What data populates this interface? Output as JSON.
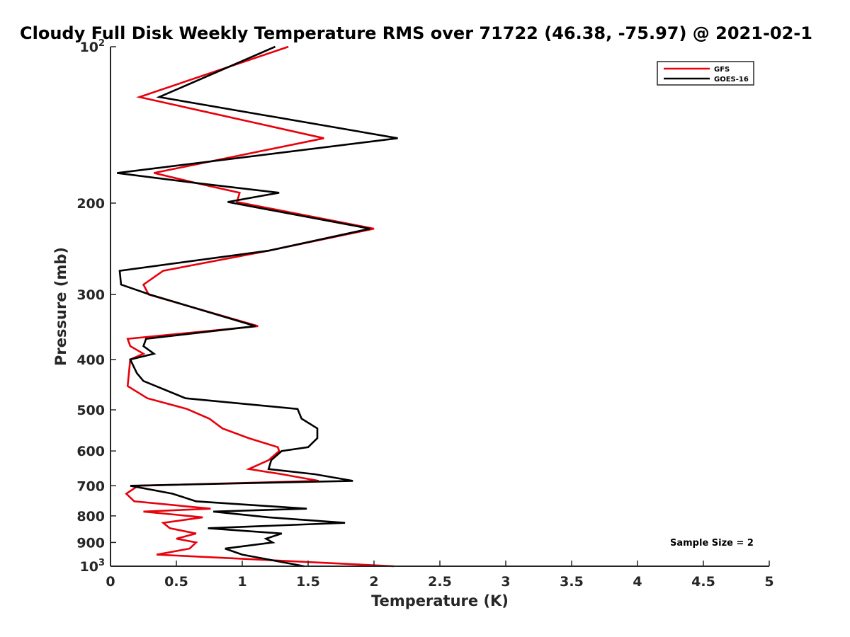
{
  "chart_data": {
    "type": "line",
    "title": "Cloudy Full Disk Weekly Temperature RMS over 71722 (46.38, -75.97) @ 2021-02-1",
    "xlabel": "Temperature (K)",
    "ylabel": "Pressure (mb)",
    "xlim": [
      0,
      5
    ],
    "ylim": [
      100,
      1000
    ],
    "yscale": "log",
    "y_reversed": true,
    "grid": false,
    "legend_position": "top-right",
    "x_ticks": [
      "0",
      "0.5",
      "1",
      "1.5",
      "2",
      "2.5",
      "3",
      "3.5",
      "4",
      "4.5",
      "5"
    ],
    "y_ticks": [
      {
        "value": 100,
        "base": "10",
        "exp": "2"
      },
      {
        "value": 200,
        "label": "200"
      },
      {
        "value": 300,
        "label": "300"
      },
      {
        "value": 400,
        "label": "400"
      },
      {
        "value": 500,
        "label": "500"
      },
      {
        "value": 600,
        "label": "600"
      },
      {
        "value": 700,
        "label": "700"
      },
      {
        "value": 800,
        "label": "800"
      },
      {
        "value": 900,
        "label": "900"
      },
      {
        "value": 1000,
        "base": "10",
        "exp": "3"
      }
    ],
    "series": [
      {
        "name": "GFS",
        "color": "#e8000b",
        "points": [
          [
            1.35,
            100
          ],
          [
            0.22,
            125
          ],
          [
            1.62,
            150
          ],
          [
            0.33,
            175
          ],
          [
            0.65,
            183
          ],
          [
            0.98,
            191
          ],
          [
            0.96,
            199
          ],
          [
            2.0,
            224
          ],
          [
            1.2,
            247
          ],
          [
            0.4,
            270
          ],
          [
            0.25,
            287
          ],
          [
            0.29,
            300
          ],
          [
            1.12,
            345
          ],
          [
            0.13,
            365
          ],
          [
            0.15,
            377
          ],
          [
            0.25,
            390
          ],
          [
            0.15,
            400
          ],
          [
            0.14,
            425
          ],
          [
            0.13,
            450
          ],
          [
            0.28,
            475
          ],
          [
            0.58,
            498
          ],
          [
            0.75,
            520
          ],
          [
            0.85,
            543
          ],
          [
            1.05,
            567
          ],
          [
            1.27,
            590
          ],
          [
            1.28,
            600
          ],
          [
            1.2,
            625
          ],
          [
            1.05,
            650
          ],
          [
            1.3,
            665
          ],
          [
            1.58,
            685
          ],
          [
            0.21,
            700
          ],
          [
            0.12,
            725
          ],
          [
            0.18,
            750
          ],
          [
            0.76,
            775
          ],
          [
            0.25,
            785
          ],
          [
            0.7,
            805
          ],
          [
            0.4,
            825
          ],
          [
            0.45,
            845
          ],
          [
            0.65,
            865
          ],
          [
            0.5,
            885
          ],
          [
            0.65,
            900
          ],
          [
            0.6,
            925
          ],
          [
            0.35,
            950
          ],
          [
            2.15,
            1000
          ]
        ]
      },
      {
        "name": "GOES-16",
        "color": "#000000",
        "points": [
          [
            1.25,
            100
          ],
          [
            0.37,
            125
          ],
          [
            2.18,
            150
          ],
          [
            0.05,
            175
          ],
          [
            0.65,
            183
          ],
          [
            1.28,
            191
          ],
          [
            0.89,
            199
          ],
          [
            1.97,
            224
          ],
          [
            1.2,
            247
          ],
          [
            0.07,
            270
          ],
          [
            0.08,
            287
          ],
          [
            0.3,
            300
          ],
          [
            1.1,
            345
          ],
          [
            0.27,
            365
          ],
          [
            0.25,
            377
          ],
          [
            0.33,
            390
          ],
          [
            0.15,
            400
          ],
          [
            0.2,
            425
          ],
          [
            0.25,
            440
          ],
          [
            0.57,
            475
          ],
          [
            1.42,
            498
          ],
          [
            1.45,
            520
          ],
          [
            1.57,
            543
          ],
          [
            1.57,
            567
          ],
          [
            1.5,
            590
          ],
          [
            1.3,
            600
          ],
          [
            1.22,
            625
          ],
          [
            1.2,
            650
          ],
          [
            1.55,
            665
          ],
          [
            1.84,
            685
          ],
          [
            0.15,
            700
          ],
          [
            0.47,
            725
          ],
          [
            0.65,
            750
          ],
          [
            1.49,
            775
          ],
          [
            0.78,
            785
          ],
          [
            1.2,
            805
          ],
          [
            1.78,
            825
          ],
          [
            0.74,
            845
          ],
          [
            1.3,
            865
          ],
          [
            1.18,
            885
          ],
          [
            1.23,
            900
          ],
          [
            0.87,
            925
          ],
          [
            1.0,
            950
          ],
          [
            1.47,
            1000
          ]
        ]
      }
    ],
    "annotations": [
      "Sample Size = 2"
    ]
  }
}
